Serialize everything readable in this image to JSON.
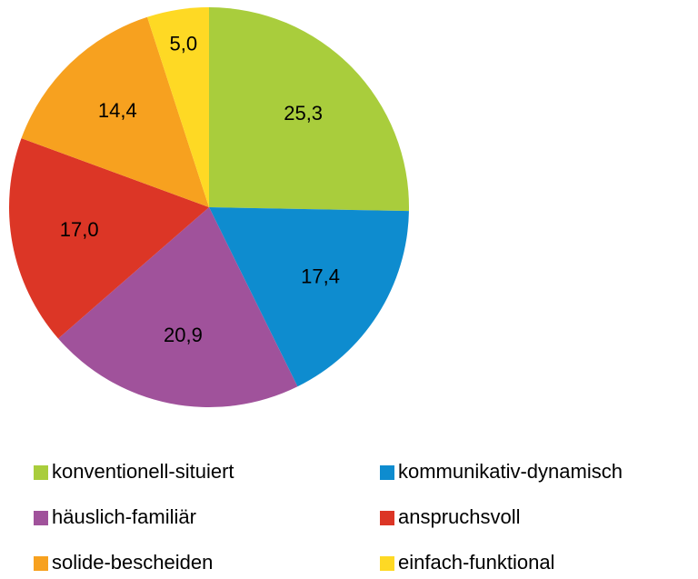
{
  "chart_data": {
    "type": "pie",
    "categories": [
      "konventionell-situiert",
      "kommunikativ-dynamisch",
      "häuslich-familiär",
      "anspruchsvoll",
      "solide-bescheiden",
      "einfach-funktional"
    ],
    "values": [
      25.3,
      17.4,
      20.9,
      17.0,
      14.4,
      5.0
    ],
    "value_labels": [
      "25,3",
      "17,4",
      "20,9",
      "17,0",
      "14,4",
      "5,0"
    ],
    "colors": [
      "#a9cd3c",
      "#0e8ccf",
      "#a0529b",
      "#dc3626",
      "#f7a11f",
      "#fed924"
    ],
    "legend": "bottom"
  }
}
